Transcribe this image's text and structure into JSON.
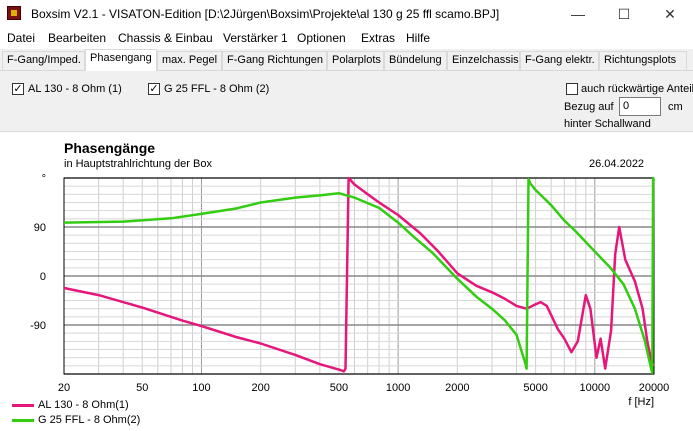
{
  "window": {
    "title": "Boxsim V2.1 - VISATON-Edition [D:\\2Jürgen\\Boxsim\\Projekte\\al 130 g 25 ffl scamo.BPJ]",
    "minimize": "—",
    "maximize": "☐",
    "close": "✕"
  },
  "menu": [
    "Datei",
    "Bearbeiten",
    "Chassis & Einbau",
    "Verstärker 1",
    "Optionen",
    "Extras",
    "Hilfe"
  ],
  "tabs": [
    "F-Gang/Imped.",
    "Phasengang",
    "max. Pegel",
    "F-Gang Richtungen",
    "Polarplots",
    "Bündelung",
    "Einzelchassis",
    "F-Gang elektr.",
    "Richtungsplots"
  ],
  "active_tab": "Phasengang",
  "options": {
    "driver1": "AL 130 - 8 Ohm (1)",
    "driver1_checked": true,
    "driver2": "G 25 FFL - 8 Ohm (2)",
    "driver2_checked": true,
    "rear_label": "auch rückwärtige Anteile",
    "rear_checked": false,
    "ref_label": "Bezug auf",
    "ref_value": "0",
    "ref_unit": "cm",
    "ref_suffix": "hinter Schallwand"
  },
  "chart_data": {
    "type": "line",
    "title": "Phasengänge",
    "subtitle": "in Hauptstrahlrichtung der Box",
    "date": "26.04.2022",
    "xlabel": "f [Hz]",
    "xscale": "log",
    "xlim": [
      20,
      20000
    ],
    "ylim": [
      -180,
      180
    ],
    "xticks": [
      20,
      50,
      100,
      200,
      500,
      1000,
      2000,
      5000,
      10000,
      20000
    ],
    "yticks": [
      {
        "value": 180,
        "label": "°"
      },
      {
        "value": 90,
        "label": "90"
      },
      {
        "value": 0,
        "label": "0"
      },
      {
        "value": -90,
        "label": "-90"
      }
    ],
    "grid": true,
    "legend_position": "bottom-left",
    "series": [
      {
        "name": "AL 130 - 8 Ohm(1)",
        "color": "#e6177a",
        "points": [
          [
            20,
            -22
          ],
          [
            30,
            -35
          ],
          [
            50,
            -58
          ],
          [
            80,
            -82
          ],
          [
            100,
            -92
          ],
          [
            150,
            -112
          ],
          [
            200,
            -124
          ],
          [
            300,
            -145
          ],
          [
            400,
            -162
          ],
          [
            500,
            -172
          ],
          [
            530,
            -175
          ],
          [
            540,
            -170
          ],
          [
            560,
            180
          ],
          [
            600,
            168
          ],
          [
            700,
            150
          ],
          [
            800,
            135
          ],
          [
            1000,
            112
          ],
          [
            1300,
            78
          ],
          [
            1600,
            45
          ],
          [
            2000,
            5
          ],
          [
            2500,
            -18
          ],
          [
            3000,
            -30
          ],
          [
            3500,
            -42
          ],
          [
            4000,
            -55
          ],
          [
            4500,
            -60
          ],
          [
            5000,
            -52
          ],
          [
            5300,
            -48
          ],
          [
            5700,
            -55
          ],
          [
            6500,
            -98
          ],
          [
            7000,
            -115
          ],
          [
            7600,
            -140
          ],
          [
            8200,
            -120
          ],
          [
            9000,
            -35
          ],
          [
            9500,
            -60
          ],
          [
            10200,
            -150
          ],
          [
            10700,
            -115
          ],
          [
            11300,
            -170
          ],
          [
            12100,
            -100
          ],
          [
            12700,
            40
          ],
          [
            13300,
            90
          ],
          [
            14300,
            30
          ],
          [
            16000,
            -10
          ],
          [
            17500,
            -60
          ],
          [
            18500,
            -120
          ],
          [
            19500,
            -160
          ],
          [
            20000,
            -165
          ]
        ]
      },
      {
        "name": "G 25 FFL - 8 Ohm(2)",
        "color": "#33cc11",
        "points": [
          [
            20,
            98
          ],
          [
            40,
            100
          ],
          [
            70,
            106
          ],
          [
            100,
            114
          ],
          [
            150,
            124
          ],
          [
            200,
            135
          ],
          [
            300,
            144
          ],
          [
            400,
            148
          ],
          [
            500,
            152
          ],
          [
            600,
            144
          ],
          [
            800,
            125
          ],
          [
            1000,
            98
          ],
          [
            1200,
            72
          ],
          [
            1500,
            42
          ],
          [
            2000,
            -5
          ],
          [
            2500,
            -38
          ],
          [
            3000,
            -60
          ],
          [
            3500,
            -82
          ],
          [
            4000,
            -108
          ],
          [
            4450,
            -162
          ],
          [
            4500,
            -170
          ],
          [
            4600,
            178
          ],
          [
            4700,
            170
          ],
          [
            5000,
            158
          ],
          [
            6000,
            130
          ],
          [
            7000,
            102
          ],
          [
            8000,
            82
          ],
          [
            10000,
            45
          ],
          [
            12000,
            15
          ],
          [
            14000,
            -15
          ],
          [
            16000,
            -60
          ],
          [
            18000,
            -120
          ],
          [
            19200,
            -165
          ],
          [
            19600,
            -178
          ],
          [
            19800,
            180
          ],
          [
            20000,
            175
          ]
        ]
      }
    ]
  }
}
